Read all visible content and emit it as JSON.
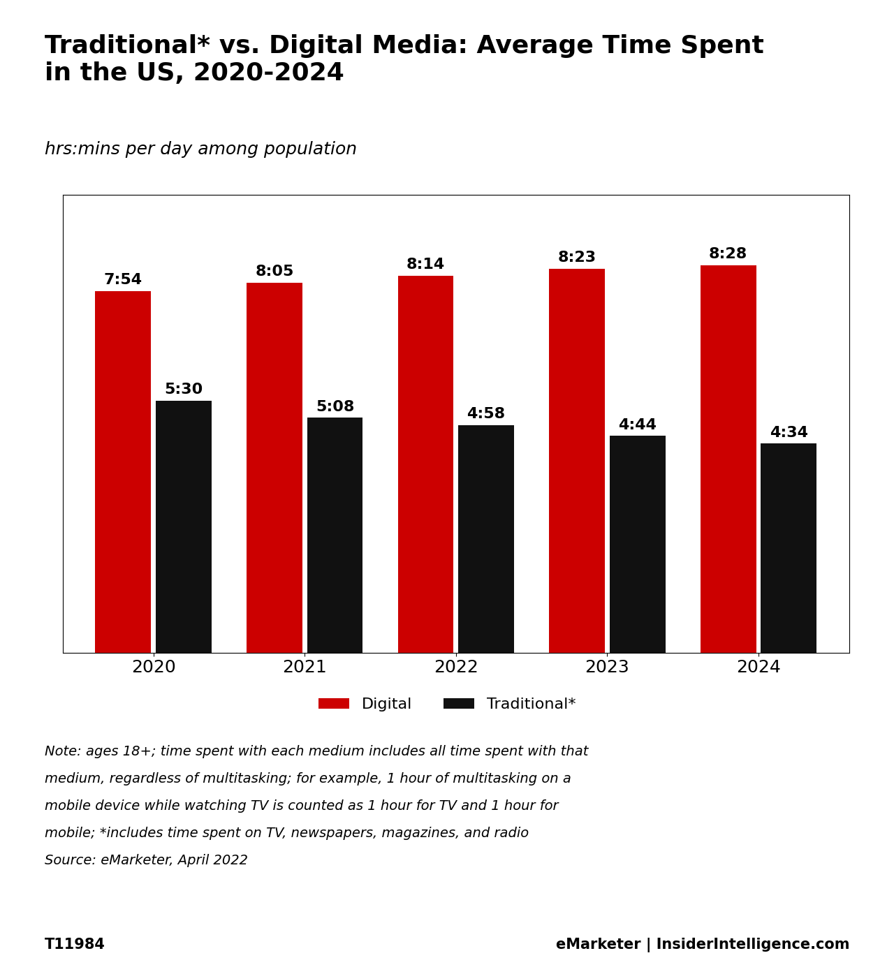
{
  "chart_data": {
    "type": "bar",
    "title": "Traditional* vs. Digital Media: Average Time Spent\nin the US, 2020-2024",
    "subtitle": "hrs:mins per day among population",
    "categories": [
      "2020",
      "2021",
      "2022",
      "2023",
      "2024"
    ],
    "series": [
      {
        "name": "Digital",
        "color": "#cc0000",
        "values": [
          7.9,
          8.0833,
          8.2333,
          8.3833,
          8.4667
        ],
        "value_labels": [
          "7:54",
          "8:05",
          "8:14",
          "8:23",
          "8:28"
        ]
      },
      {
        "name": "Traditional*",
        "color": "#111111",
        "values": [
          5.5,
          5.1333,
          4.9667,
          4.7333,
          4.5667
        ],
        "value_labels": [
          "5:30",
          "5:08",
          "4:58",
          "4:44",
          "4:34"
        ]
      }
    ],
    "ylim": [
      0,
      10
    ],
    "tick_labels": "x",
    "data_labels": true,
    "grid": false,
    "legend": "lower center",
    "annotations": [
      "Note: ages 18+; time spent with each medium includes all time spent with that",
      "medium, regardless of multitasking; for example, 1 hour of multitasking on a",
      "mobile device while watching TV is counted as 1 hour for TV and 1 hour for",
      "mobile; *includes time spent on TV, newspapers, magazines, and radio",
      "Source: eMarketer, April 2022",
      "T11984",
      "eMarketer | InsiderIntelligence.com"
    ]
  }
}
